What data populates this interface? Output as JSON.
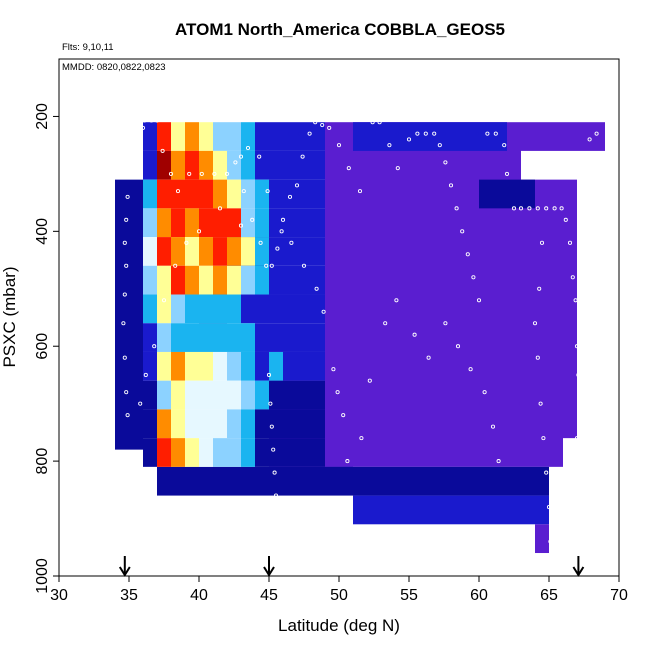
{
  "chart_data": {
    "type": "heatmap",
    "title": "ATOM1 North_America COBBLA_GEOS5",
    "notes": [
      "Flts: 9,10,11",
      "MMDD: 0820,0822,0823"
    ],
    "xlabel": "Latitude (deg N)",
    "ylabel": "PSXC (mbar)",
    "xlim": [
      30,
      70
    ],
    "ylim": [
      1000,
      100
    ],
    "xticks": [
      30,
      35,
      40,
      45,
      50,
      55,
      60,
      65,
      70
    ],
    "yticks": [
      200,
      400,
      600,
      800,
      1000
    ],
    "arrows_at_latitude": [
      34.7,
      45,
      67.1
    ],
    "colors": {
      "deep_blue": "#0a0a9a",
      "blue": "#1a1acd",
      "purple": "#5a1ed0",
      "violet": "#7a28e0",
      "cyan": "#1ab4f0",
      "light_blue": "#8cd2ff",
      "pale": "#e6f8ff",
      "yellow": "#ffff96",
      "orange": "#ff8c00",
      "red": "#ff1e00",
      "dark_red": "#a00000",
      "marker": "#ffffff"
    },
    "grid_latitude_edges": [
      36,
      37,
      38,
      39,
      40,
      41,
      42,
      43,
      44,
      45,
      46,
      47,
      48,
      49
    ],
    "grid_pressure_edges": [
      210,
      260,
      310,
      360,
      410,
      460,
      510,
      560,
      610,
      660,
      710,
      760,
      810
    ],
    "left_cells": [
      [
        "blue",
        "blue",
        "cyan",
        "light_blue",
        "pale",
        "light_blue",
        "cyan",
        "blue",
        "blue",
        "deep_blue",
        "deep_blue",
        "deep_blue",
        "deep_blue"
      ],
      [
        "red",
        "dark_red",
        "red",
        "orange",
        "red",
        "yellow",
        "yellow",
        "light_blue",
        "yellow",
        "light_blue",
        "orange",
        "red",
        "yellow"
      ],
      [
        "yellow",
        "orange",
        "red",
        "red",
        "orange",
        "red",
        "light_blue",
        "cyan",
        "orange",
        "yellow",
        "yellow",
        "orange",
        "pale"
      ],
      [
        "orange",
        "red",
        "red",
        "orange",
        "yellow",
        "orange",
        "cyan",
        "cyan",
        "yellow",
        "pale",
        "pale",
        "yellow",
        "yellow"
      ],
      [
        "yellow",
        "orange",
        "red",
        "red",
        "orange",
        "yellow",
        "cyan",
        "cyan",
        "yellow",
        "pale",
        "pale",
        "pale",
        "pale"
      ],
      [
        "light_blue",
        "yellow",
        "orange",
        "red",
        "red",
        "orange",
        "cyan",
        "cyan",
        "pale",
        "pale",
        "pale",
        "light_blue",
        "light_blue"
      ],
      [
        "light_blue",
        "light_blue",
        "yellow",
        "red",
        "orange",
        "yellow",
        "cyan",
        "cyan",
        "light_blue",
        "pale",
        "light_blue",
        "light_blue",
        "cyan"
      ],
      [
        "cyan",
        "cyan",
        "light_blue",
        "light_blue",
        "yellow",
        "light_blue",
        "blue",
        "cyan",
        "cyan",
        "light_blue",
        "cyan",
        "cyan",
        "cyan"
      ],
      [
        "blue",
        "blue",
        "cyan",
        "cyan",
        "cyan",
        "cyan",
        "blue",
        "blue",
        "blue",
        "cyan",
        "deep_blue",
        "deep_blue",
        "deep_blue"
      ],
      [
        "blue",
        "blue",
        "blue",
        "blue",
        "blue",
        "blue",
        "blue",
        "blue",
        "cyan",
        "deep_blue",
        "deep_blue",
        "deep_blue",
        "deep_blue"
      ],
      [
        "blue",
        "blue",
        "blue",
        "blue",
        "blue",
        "blue",
        "blue",
        "blue",
        "blue",
        "deep_blue",
        "deep_blue",
        "deep_blue",
        "deep_blue"
      ],
      [
        "blue",
        "blue",
        "blue",
        "blue",
        "blue",
        "blue",
        "blue",
        "blue",
        "blue",
        "deep_blue",
        "deep_blue",
        "deep_blue",
        "deep_blue"
      ],
      [
        "blue",
        "blue",
        "blue",
        "blue",
        "blue",
        "blue",
        "blue",
        "blue",
        "blue",
        "deep_blue",
        "deep_blue",
        "deep_blue",
        "deep_blue"
      ]
    ],
    "regions": [
      {
        "lat": [
          35,
          36
        ],
        "p": [
          310,
          780
        ],
        "color": "deep_blue"
      },
      {
        "lat": [
          34,
          35
        ],
        "p": [
          310,
          780
        ],
        "color": "deep_blue"
      },
      {
        "lat": [
          49,
          51
        ],
        "p": [
          260,
          810
        ],
        "color": "deep_blue"
      },
      {
        "lat": [
          45,
          49
        ],
        "p": [
          660,
          810
        ],
        "color": "violet"
      },
      {
        "lat": [
          49,
          63
        ],
        "p": [
          210,
          810
        ],
        "color": "purple"
      },
      {
        "lat": [
          63,
          66
        ],
        "p": [
          310,
          810
        ],
        "color": "purple"
      },
      {
        "lat": [
          63,
          69
        ],
        "p": [
          210,
          260
        ],
        "color": "purple"
      },
      {
        "lat": [
          66,
          67
        ],
        "p": [
          310,
          760
        ],
        "color": "purple"
      },
      {
        "lat": [
          60,
          64
        ],
        "p": [
          310,
          360
        ],
        "color": "deep_blue"
      },
      {
        "lat": [
          42,
          45
        ],
        "p": [
          410,
          510
        ],
        "color": "deep_blue"
      },
      {
        "lat": [
          37,
          65
        ],
        "p": [
          810,
          860
        ],
        "color": "deep_blue"
      },
      {
        "lat": [
          51,
          65
        ],
        "p": [
          860,
          910
        ],
        "color": "blue"
      },
      {
        "lat": [
          64,
          65
        ],
        "p": [
          910,
          960
        ],
        "color": "purple"
      },
      {
        "lat": [
          40,
          42
        ],
        "p": [
          480,
          560
        ],
        "color": "deep_blue"
      },
      {
        "lat": [
          43,
          46
        ],
        "p": [
          610,
          660
        ],
        "color": "cyan"
      },
      {
        "lat": [
          51,
          62
        ],
        "p": [
          210,
          260
        ],
        "color": "blue"
      },
      {
        "lat": [
          55,
          63
        ],
        "p": [
          410,
          460
        ],
        "color": "purple"
      },
      {
        "lat": [
          60,
          62
        ],
        "p": [
          710,
          760
        ],
        "color": "purple"
      }
    ],
    "flight_points": [
      [
        36.1,
        207
      ],
      [
        36.6,
        207
      ],
      [
        37.0,
        207
      ],
      [
        36.0,
        220
      ],
      [
        35.5,
        240
      ],
      [
        35.2,
        270
      ],
      [
        35.0,
        300
      ],
      [
        34.9,
        340
      ],
      [
        34.8,
        380
      ],
      [
        34.7,
        420
      ],
      [
        34.8,
        460
      ],
      [
        34.7,
        510
      ],
      [
        34.6,
        560
      ],
      [
        34.7,
        620
      ],
      [
        34.8,
        680
      ],
      [
        34.9,
        720
      ],
      [
        37.4,
        260
      ],
      [
        38.0,
        300
      ],
      [
        38.5,
        330
      ],
      [
        39.3,
        300
      ],
      [
        40.2,
        300
      ],
      [
        41.1,
        300
      ],
      [
        42.0,
        300
      ],
      [
        42.6,
        280
      ],
      [
        43.0,
        270
      ],
      [
        43.5,
        255
      ],
      [
        43.2,
        330
      ],
      [
        43.8,
        380
      ],
      [
        44.4,
        420
      ],
      [
        44.8,
        460
      ],
      [
        45.2,
        460
      ],
      [
        45.6,
        430
      ],
      [
        46.0,
        380
      ],
      [
        46.5,
        340
      ],
      [
        47.0,
        320
      ],
      [
        47.4,
        270
      ],
      [
        47.9,
        230
      ],
      [
        48.3,
        210
      ],
      [
        48.8,
        215
      ],
      [
        49.3,
        220
      ],
      [
        45.0,
        650
      ],
      [
        45.1,
        700
      ],
      [
        45.2,
        740
      ],
      [
        45.3,
        780
      ],
      [
        45.4,
        820
      ],
      [
        45.5,
        860
      ],
      [
        50.0,
        250
      ],
      [
        50.7,
        290
      ],
      [
        51.5,
        330
      ],
      [
        52.4,
        210
      ],
      [
        52.9,
        210
      ],
      [
        53.6,
        250
      ],
      [
        54.2,
        290
      ],
      [
        55.0,
        240
      ],
      [
        55.6,
        230
      ],
      [
        56.2,
        230
      ],
      [
        56.8,
        230
      ],
      [
        57.2,
        250
      ],
      [
        57.6,
        280
      ],
      [
        58.0,
        320
      ],
      [
        58.4,
        360
      ],
      [
        58.8,
        400
      ],
      [
        59.2,
        440
      ],
      [
        59.6,
        480
      ],
      [
        60.0,
        520
      ],
      [
        60.6,
        230
      ],
      [
        61.2,
        230
      ],
      [
        61.8,
        250
      ],
      [
        62.0,
        300
      ],
      [
        62.5,
        360
      ],
      [
        63.0,
        360
      ],
      [
        63.6,
        360
      ],
      [
        64.2,
        360
      ],
      [
        64.8,
        360
      ],
      [
        65.4,
        360
      ],
      [
        65.9,
        360
      ],
      [
        66.2,
        380
      ],
      [
        66.5,
        420
      ],
      [
        66.7,
        480
      ],
      [
        66.9,
        520
      ],
      [
        67.0,
        600
      ],
      [
        67.1,
        650
      ],
      [
        67.2,
        700
      ],
      [
        67.0,
        760
      ],
      [
        66.9,
        800
      ],
      [
        67.9,
        240
      ],
      [
        68.4,
        230
      ],
      [
        69.2,
        220
      ],
      [
        69.8,
        210
      ],
      [
        64.5,
        420
      ],
      [
        64.3,
        500
      ],
      [
        64.0,
        560
      ],
      [
        64.2,
        620
      ],
      [
        64.4,
        700
      ],
      [
        64.6,
        760
      ],
      [
        64.8,
        820
      ],
      [
        65.0,
        880
      ],
      [
        65.1,
        940
      ],
      [
        61.4,
        800
      ],
      [
        61.0,
        740
      ],
      [
        60.4,
        680
      ],
      [
        59.4,
        640
      ],
      [
        58.5,
        600
      ],
      [
        57.6,
        560
      ],
      [
        56.4,
        620
      ],
      [
        55.4,
        580
      ],
      [
        54.1,
        520
      ],
      [
        53.3,
        560
      ],
      [
        52.2,
        660
      ],
      [
        51.6,
        760
      ],
      [
        50.6,
        800
      ],
      [
        50.3,
        720
      ],
      [
        49.9,
        680
      ],
      [
        49.6,
        640
      ],
      [
        48.9,
        540
      ],
      [
        48.4,
        500
      ],
      [
        47.5,
        460
      ],
      [
        46.6,
        420
      ],
      [
        45.9,
        400
      ],
      [
        44.9,
        330
      ],
      [
        44.3,
        270
      ],
      [
        43.0,
        390
      ],
      [
        41.5,
        360
      ],
      [
        40.0,
        400
      ],
      [
        39.1,
        420
      ],
      [
        38.3,
        460
      ],
      [
        37.5,
        520
      ],
      [
        36.8,
        600
      ],
      [
        36.2,
        650
      ],
      [
        35.8,
        700
      ]
    ]
  }
}
